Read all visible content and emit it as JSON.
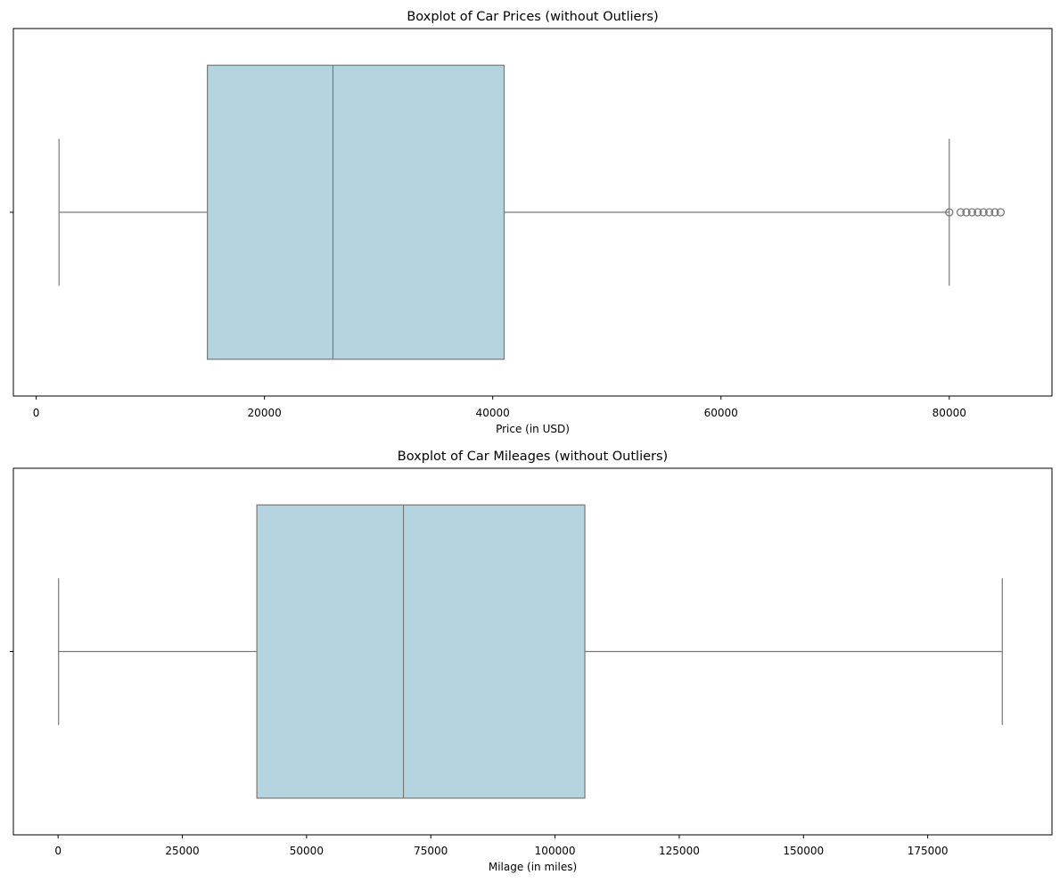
{
  "chart_data": [
    {
      "type": "boxplot",
      "title": "Boxplot of Car Prices (without Outliers)",
      "xlabel": "Price (in USD)",
      "ylabel": "",
      "xlim": [
        -2000,
        89000
      ],
      "xticks": [
        0,
        20000,
        40000,
        60000,
        80000
      ],
      "xtick_labels": [
        "0",
        "20000",
        "40000",
        "60000",
        "80000"
      ],
      "grid": false,
      "box": {
        "whisker_low": 2000,
        "q1": 15000,
        "median": 26000,
        "q3": 41000,
        "whisker_high": 80000
      },
      "fliers": [
        80000,
        81000,
        81500,
        82000,
        82500,
        83000,
        83500,
        84000,
        84500
      ]
    },
    {
      "type": "boxplot",
      "title": "Boxplot of Car Mileages (without Outliers)",
      "xlabel": "Milage (in miles)",
      "ylabel": "",
      "xlim": [
        -9000,
        200000
      ],
      "xticks": [
        0,
        25000,
        50000,
        75000,
        100000,
        125000,
        150000,
        175000
      ],
      "xtick_labels": [
        "0",
        "25000",
        "50000",
        "75000",
        "100000",
        "125000",
        "150000",
        "175000"
      ],
      "grid": false,
      "box": {
        "whisker_low": 100,
        "q1": 40000,
        "median": 69500,
        "q3": 106000,
        "whisker_high": 190000
      },
      "fliers": []
    }
  ],
  "colors": {
    "box_fill": "#b4d5e0",
    "box_edge": "#787878",
    "axis": "#000000",
    "background": "#ffffff"
  }
}
